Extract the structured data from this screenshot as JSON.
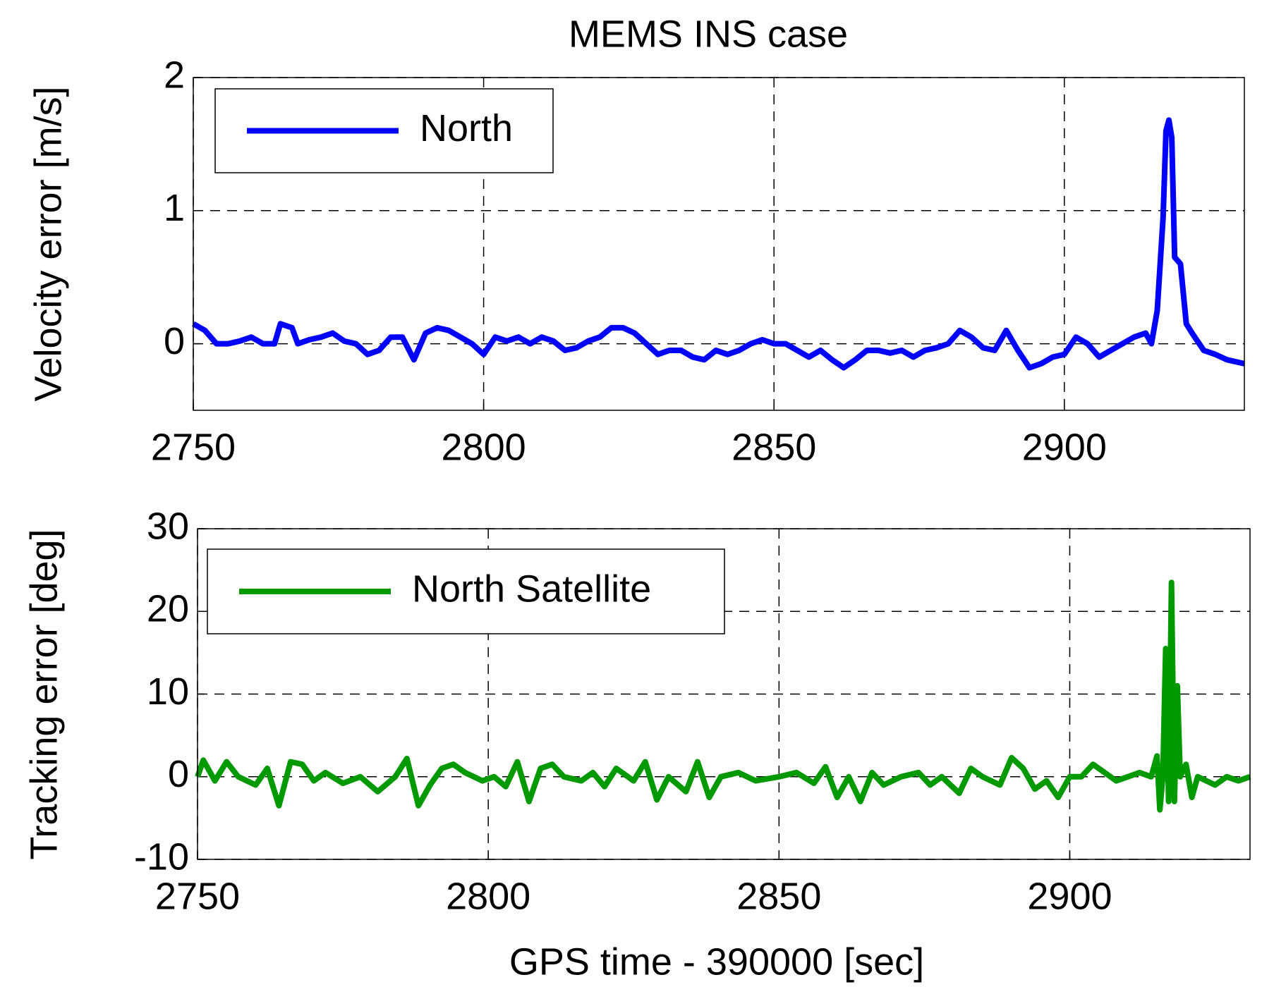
{
  "chart_data": [
    {
      "type": "line",
      "title": "MEMS INS case",
      "ylabel": "Velocity error [m/s]",
      "xlim": [
        2750,
        2931
      ],
      "ylim": [
        -0.5,
        2
      ],
      "xticks": [
        2750,
        2800,
        2850,
        2900
      ],
      "yticks": [
        0,
        1,
        2
      ],
      "grid": true,
      "legend": "upper left",
      "x": [
        2750,
        2752,
        2754,
        2756,
        2758,
        2760,
        2762,
        2764,
        2765,
        2767,
        2768,
        2770,
        2772,
        2774,
        2776,
        2778,
        2780,
        2782,
        2784,
        2786,
        2788,
        2790,
        2792,
        2794,
        2796,
        2798,
        2800,
        2802,
        2804,
        2806,
        2808,
        2810,
        2812,
        2814,
        2816,
        2818,
        2820,
        2822,
        2824,
        2826,
        2828,
        2830,
        2832,
        2834,
        2836,
        2838,
        2840,
        2842,
        2844,
        2846,
        2848,
        2850,
        2852,
        2854,
        2856,
        2858,
        2860,
        2862,
        2864,
        2866,
        2868,
        2870,
        2872,
        2874,
        2876,
        2878,
        2880,
        2882,
        2884,
        2886,
        2888,
        2890,
        2892,
        2894,
        2896,
        2898,
        2900,
        2902,
        2904,
        2906,
        2908,
        2910,
        2912,
        2914,
        2915,
        2916,
        2917,
        2917.5,
        2918,
        2918.5,
        2919,
        2920,
        2921,
        2922,
        2924,
        2926,
        2928,
        2931
      ],
      "series": [
        {
          "name": "North",
          "color": "#0000ff",
          "values": [
            0.15,
            0.1,
            0.0,
            0.0,
            0.02,
            0.05,
            0.0,
            0.0,
            0.15,
            0.12,
            0.0,
            0.03,
            0.05,
            0.08,
            0.02,
            0.0,
            -0.08,
            -0.05,
            0.05,
            0.05,
            -0.12,
            0.08,
            0.12,
            0.1,
            0.05,
            0.0,
            -0.08,
            0.05,
            0.02,
            0.05,
            0.0,
            0.05,
            0.02,
            -0.05,
            -0.03,
            0.02,
            0.05,
            0.12,
            0.12,
            0.08,
            0.0,
            -0.08,
            -0.05,
            -0.05,
            -0.1,
            -0.12,
            -0.05,
            -0.08,
            -0.05,
            0.0,
            0.03,
            0.0,
            0.0,
            -0.05,
            -0.1,
            -0.05,
            -0.12,
            -0.18,
            -0.12,
            -0.05,
            -0.05,
            -0.07,
            -0.05,
            -0.1,
            -0.05,
            -0.03,
            0.0,
            0.1,
            0.05,
            -0.03,
            -0.05,
            0.1,
            -0.05,
            -0.18,
            -0.15,
            -0.1,
            -0.08,
            0.05,
            0.0,
            -0.1,
            -0.05,
            0.0,
            0.05,
            0.08,
            0.0,
            0.25,
            0.95,
            1.6,
            1.68,
            1.55,
            0.65,
            0.6,
            0.15,
            0.08,
            -0.05,
            -0.08,
            -0.12,
            -0.15
          ]
        }
      ]
    },
    {
      "type": "line",
      "ylabel": "Tracking error [deg]",
      "xlabel": "GPS time - 390000 [sec]",
      "xlim": [
        2750,
        2931
      ],
      "ylim": [
        -10,
        30
      ],
      "xticks": [
        2750,
        2800,
        2850,
        2900
      ],
      "yticks": [
        -10,
        0,
        10,
        20,
        30
      ],
      "grid": true,
      "legend": "upper left",
      "x": [
        2750,
        2751,
        2753,
        2755,
        2757,
        2760,
        2762,
        2764,
        2766,
        2768,
        2770,
        2772,
        2775,
        2778,
        2781,
        2784,
        2786,
        2788,
        2790,
        2792,
        2794,
        2796,
        2799,
        2801,
        2803,
        2805,
        2807,
        2809,
        2811,
        2813,
        2816,
        2818,
        2820,
        2822,
        2825,
        2827,
        2829,
        2831,
        2834,
        2836,
        2838,
        2840,
        2843,
        2846,
        2850,
        2853,
        2856,
        2858,
        2860,
        2862,
        2864,
        2866,
        2868,
        2871,
        2874,
        2876,
        2878,
        2881,
        2883,
        2885,
        2888,
        2890,
        2892,
        2894,
        2896,
        2898,
        2900,
        2902,
        2904,
        2906,
        2908,
        2910,
        2912,
        2914,
        2915,
        2915.5,
        2916,
        2916.5,
        2917,
        2917.5,
        2918,
        2918.5,
        2919,
        2920,
        2921,
        2922,
        2925,
        2927,
        2929,
        2931
      ],
      "series": [
        {
          "name": "North Satellite",
          "color": "#009900",
          "values": [
            0,
            2,
            -0.5,
            1.8,
            0,
            -1,
            1,
            -3.5,
            1.8,
            1.5,
            -0.5,
            0.5,
            -0.8,
            0,
            -1.8,
            0,
            2.2,
            -3.5,
            -1,
            1,
            1.5,
            0.5,
            -0.5,
            0,
            -1.2,
            1.8,
            -3,
            1,
            1.5,
            0,
            -0.5,
            0.5,
            -1.2,
            1,
            -0.5,
            1.8,
            -2.8,
            0,
            -1.8,
            1.8,
            -2.5,
            0,
            0.5,
            -0.5,
            0,
            0.5,
            -0.8,
            1.2,
            -2.5,
            0,
            -3,
            0.5,
            -1,
            0,
            0.5,
            -1,
            0,
            -2,
            1,
            0,
            -1,
            2.3,
            1,
            -1.5,
            -0.5,
            -2.5,
            0,
            0,
            1.5,
            0.5,
            -0.5,
            0,
            0.5,
            0,
            2.5,
            -4,
            0,
            15.5,
            -3,
            23.5,
            -3,
            11,
            0,
            1.5,
            -2.5,
            0,
            -1,
            0,
            -0.5,
            0
          ]
        }
      ]
    }
  ]
}
